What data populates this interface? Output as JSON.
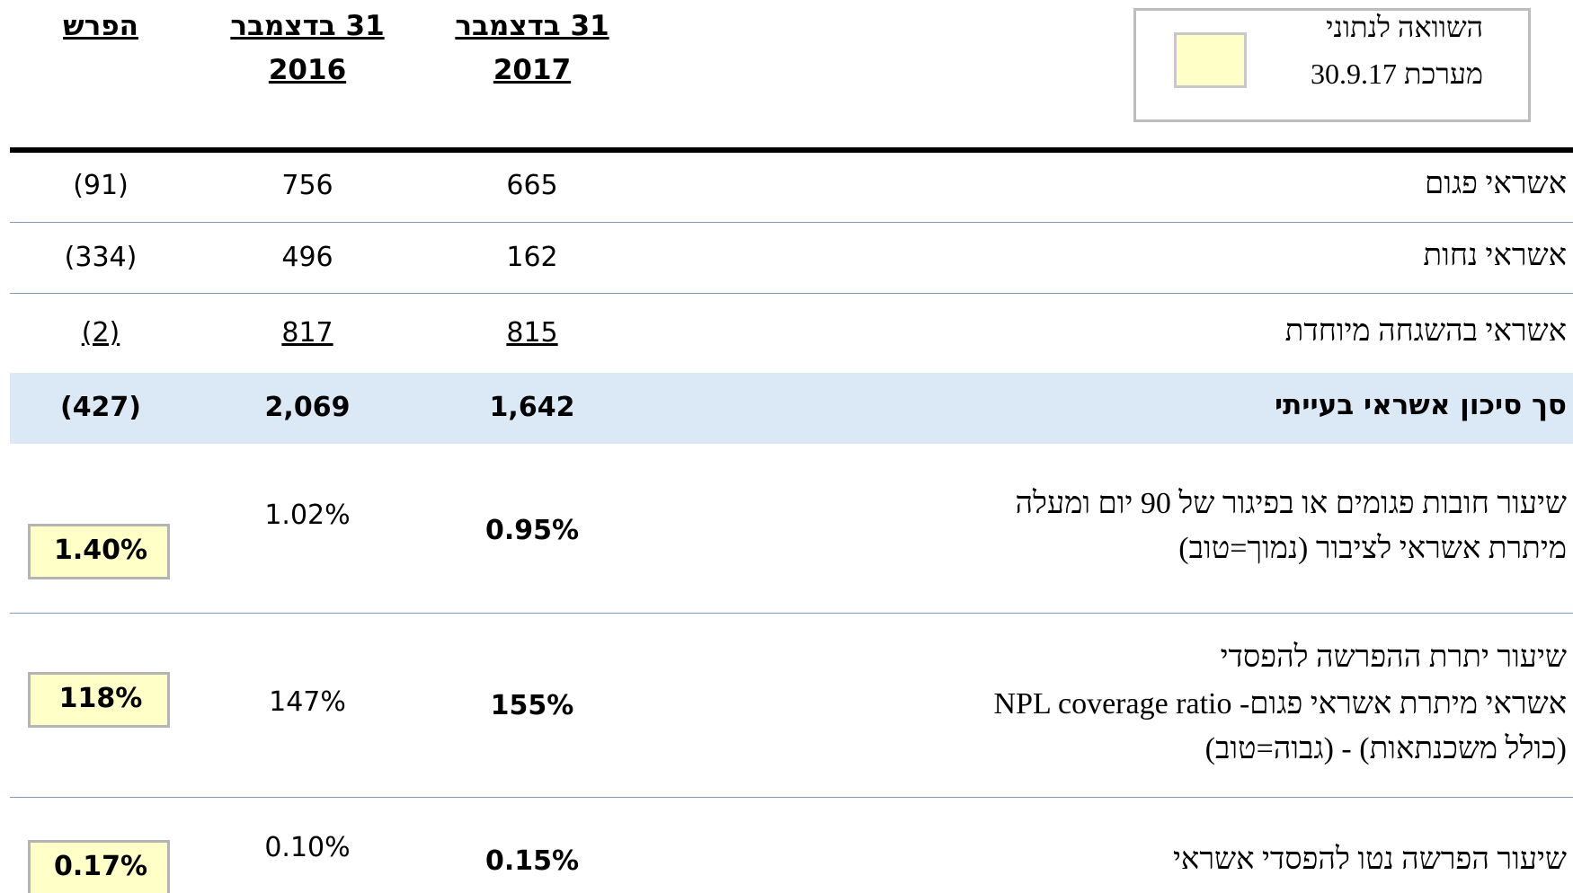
{
  "header": {
    "legend_lines": [
      "השוואה לנתוני",
      "מערכת 30.9.17"
    ],
    "columns": [
      {
        "lines": [
          "31 בדצמבר",
          "2017"
        ]
      },
      {
        "lines": [
          "31 בדצמבר",
          "2016"
        ]
      },
      {
        "lines": [
          "הפרש"
        ]
      }
    ]
  },
  "rows": [
    {
      "label_lines": [
        "אשראי פגום"
      ],
      "values": [
        "665",
        "756",
        "(91)"
      ]
    },
    {
      "label_lines": [
        "אשראי נחות"
      ],
      "values": [
        "162",
        "496",
        "(334)"
      ]
    },
    {
      "label_lines": [
        "אשראי בהשגחה מיוחדת"
      ],
      "values": [
        "815",
        "817",
        "(2)"
      ]
    },
    {
      "label_lines": [
        "סך סיכון אשראי בעייתי"
      ],
      "values": [
        "1,642",
        "2,069",
        "(427)"
      ]
    },
    {
      "label_lines": [
        "שיעור חובות פגומים או בפיגור של 90 יום ומעלה",
        "מיתרת אשראי לציבור (נמוך=טוב)"
      ],
      "values": [
        "0.95%",
        "1.02%",
        "1.40%"
      ]
    },
    {
      "label_lines": [
        "שיעור יתרת ההפרשה להפסדי",
        "אשראי מיתרת אשראי פגום- NPL coverage ratio",
        "(כולל משכנתאות) - (גבוה=טוב)"
      ],
      "values": [
        "155%",
        "147%",
        "118%"
      ]
    },
    {
      "label_lines": [
        "שיעור הפרשה נטו להפסדי אשראי"
      ],
      "values": [
        "0.15%",
        "0.10%",
        "0.17%"
      ]
    }
  ]
}
